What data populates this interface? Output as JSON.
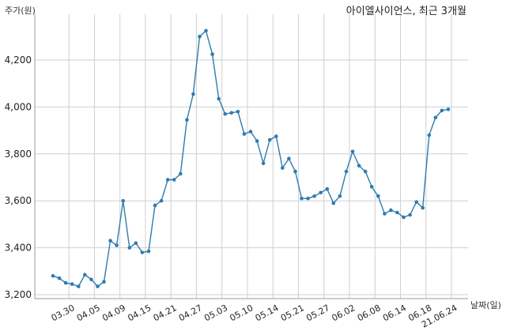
{
  "chart_data": {
    "type": "line",
    "title": "아이엘사이언스, 최근 3개월",
    "ylabel": "주가(원)",
    "xlabel": "날짜(일)",
    "ylim": [
      3200,
      4400
    ],
    "yticks": [
      3200,
      3400,
      3600,
      3800,
      4000,
      4200
    ],
    "ytick_labels": [
      "3,200",
      "3,400",
      "3,600",
      "3,800",
      "4,000",
      "4,200"
    ],
    "xtick_labels": [
      "03.30",
      "04.05",
      "04.09",
      "04.15",
      "04.21",
      "04.27",
      "05.03",
      "05.10",
      "05.14",
      "05.21",
      "05.27",
      "06.02",
      "06.08",
      "06.14",
      "06.18",
      "21.06.24"
    ],
    "xtick_positions": [
      2.5,
      6.5,
      10.5,
      14.5,
      18.5,
      22.5,
      26.5,
      30.5,
      34.5,
      38.5,
      42.5,
      46.5,
      50.5,
      54.5,
      58.5,
      62.5
    ],
    "grid": true,
    "line_color": "#2e7bb0",
    "series": [
      {
        "values": [
          3280,
          3270,
          3250,
          3245,
          3235,
          3285,
          3265,
          3235,
          3255,
          3430,
          3410,
          3600,
          3400,
          3420,
          3380,
          3385,
          3580,
          3600,
          3690,
          3690,
          3715,
          3945,
          4055,
          4300,
          4325,
          4225,
          4035,
          3970,
          3975,
          3980,
          3885,
          3895,
          3855,
          3760,
          3860,
          3875,
          3740,
          3780,
          3725,
          3610,
          3610,
          3620,
          3635,
          3650,
          3590,
          3620,
          3725,
          3810,
          3750,
          3725,
          3660,
          3620,
          3545,
          3560,
          3550,
          3530,
          3540,
          3595,
          3570,
          3880,
          3955,
          3985,
          3990
        ]
      }
    ]
  }
}
